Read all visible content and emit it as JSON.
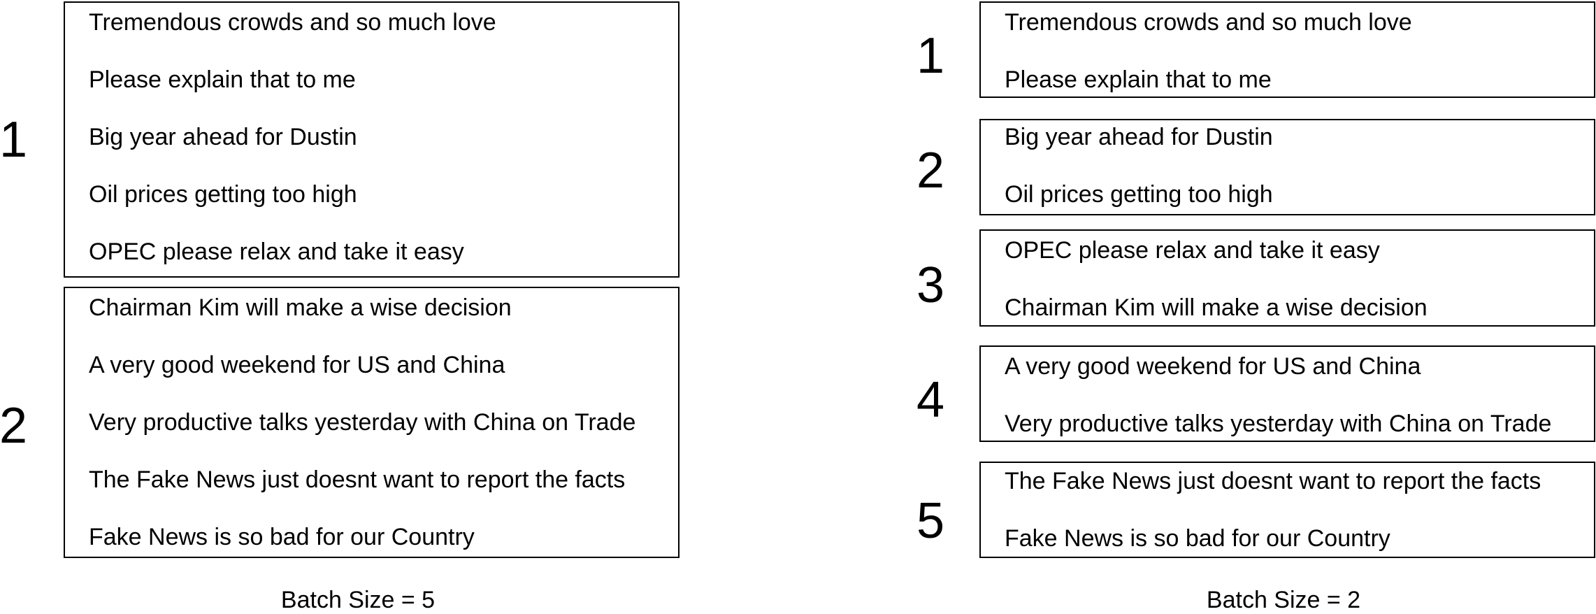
{
  "panels": [
    {
      "caption": "Batch Size = 5",
      "batches": [
        {
          "number": "1",
          "lines": [
            "Tremendous crowds and so much love",
            "Please explain that to me",
            "Big year ahead for Dustin",
            "Oil prices getting too high",
            "OPEC please relax and take it easy"
          ]
        },
        {
          "number": "2",
          "lines": [
            "Chairman Kim will make a wise decision",
            "A very good weekend for US  and  China",
            "Very productive talks yesterday with China on Trade",
            "The Fake News just doesnt want to report the facts",
            "Fake News is so bad for our Country"
          ]
        }
      ]
    },
    {
      "caption": "Batch Size = 2",
      "batches": [
        {
          "number": "1",
          "lines": [
            "Tremendous crowds and so much love",
            "Please explain that to me"
          ]
        },
        {
          "number": "2",
          "lines": [
            "Big year ahead for Dustin",
            "Oil prices getting too high"
          ]
        },
        {
          "number": "3",
          "lines": [
            "OPEC please relax and take it easy",
            "Chairman Kim will make a wise decision"
          ]
        },
        {
          "number": "4",
          "lines": [
            "A very good weekend for US  and  China",
            "Very productive talks yesterday with China on Trade"
          ]
        },
        {
          "number": "5",
          "lines": [
            "The Fake News just doesnt want to report the facts",
            "Fake News is so bad for our Country"
          ]
        }
      ]
    }
  ]
}
